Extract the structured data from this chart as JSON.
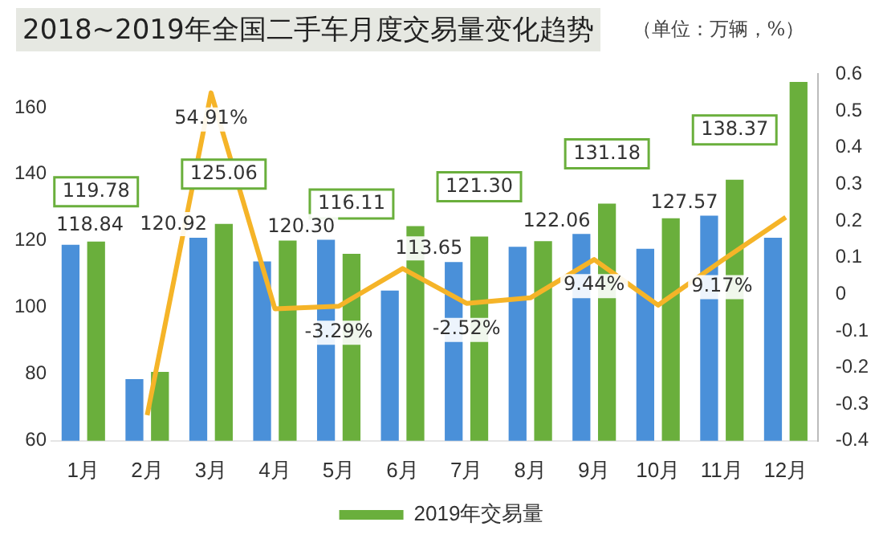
{
  "chart_data": {
    "type": "bar",
    "title": "2018~2019年全国二手车月度交易量变化趋势",
    "subtitle": "（单位：万辆，%）",
    "categories": [
      "1月",
      "2月",
      "3月",
      "4月",
      "5月",
      "6月",
      "7月",
      "8月",
      "9月",
      "10月",
      "11月",
      "12月"
    ],
    "series": [
      {
        "color": "#4a90d9",
        "values": [
          118.84,
          78.5,
          120.92,
          113.8,
          120.3,
          105.1,
          113.65,
          118.2,
          122.06,
          117.6,
          127.57,
          120.9
        ],
        "value_labels": [
          "118.84",
          null,
          "120.92",
          null,
          "120.30",
          null,
          "113.65",
          null,
          "122.06",
          null,
          "127.57",
          null
        ]
      },
      {
        "name": "2019年交易量",
        "color": "#6aaf3c",
        "values": [
          119.78,
          80.7,
          125.06,
          120.1,
          116.11,
          124.4,
          121.3,
          119.9,
          131.18,
          126.8,
          138.37,
          167.7
        ],
        "value_labels": [
          "119.78",
          null,
          "125.06",
          null,
          "116.11",
          null,
          "121.30",
          null,
          "131.18",
          null,
          "138.37",
          null
        ]
      },
      {
        "type": "line",
        "axis": "y2",
        "color": "#f5b428",
        "values": [
          null,
          -0.33,
          0.5491,
          -0.04,
          -0.0329,
          0.07,
          -0.0252,
          -0.01,
          0.0944,
          -0.03,
          0.0917,
          0.21
        ],
        "value_labels": [
          null,
          null,
          "54.91%",
          null,
          "-3.29%",
          null,
          "-2.52%",
          null,
          "9.44%",
          null,
          "9.17%",
          null
        ]
      }
    ],
    "ylim": [
      60,
      170
    ],
    "yticks": [
      60,
      80,
      100,
      120,
      140,
      160
    ],
    "y2lim": [
      -0.4,
      0.6
    ],
    "y2ticks": [
      -0.4,
      -0.3,
      -0.2,
      -0.1,
      0,
      0.1,
      0.2,
      0.3,
      0.4,
      0.5,
      0.6
    ],
    "grid": false,
    "legend": "bottom"
  }
}
